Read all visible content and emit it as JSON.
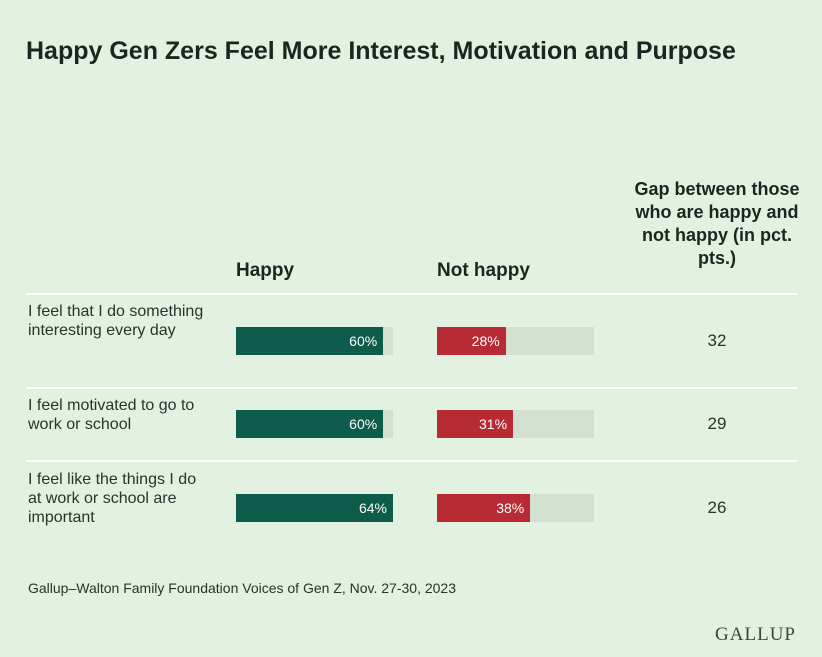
{
  "title": "Happy Gen Zers Feel More Interest, Motivation and Purpose",
  "columns": {
    "happy": "Happy",
    "not_happy": "Not happy",
    "gap": "Gap between those who are happy and not happy (in pct. pts.)"
  },
  "rows": [
    {
      "label": "I feel that I do something interesting every day",
      "happy_label": "60%",
      "not_happy_label": "28%",
      "gap": "32"
    },
    {
      "label": "I feel motivated to go to work or school",
      "happy_label": "60%",
      "not_happy_label": "31%",
      "gap": "29"
    },
    {
      "label": "I feel like the things I do at work or school are important",
      "happy_label": "64%",
      "not_happy_label": "38%",
      "gap": "26"
    }
  ],
  "source": "Gallup–Walton Family Foundation Voices of Gen Z, Nov. 27-30, 2023",
  "logo": "GALLUP",
  "colors": {
    "background": "#e3f1e0",
    "happy": "#0d5c4b",
    "not_happy": "#b82b35",
    "track": "#d3dfd0"
  },
  "chart_data": {
    "type": "bar",
    "orientation": "horizontal",
    "title": "Happy Gen Zers Feel More Interest, Motivation and Purpose",
    "categories": [
      "I feel that I do something interesting every day",
      "I feel motivated to go to work or school",
      "I feel like the things I do at work or school are important"
    ],
    "series": [
      {
        "name": "Happy",
        "values": [
          60,
          60,
          64
        ]
      },
      {
        "name": "Not happy",
        "values": [
          28,
          31,
          38
        ]
      }
    ],
    "gap": [
      32,
      29,
      26
    ],
    "ylim": [
      0,
      64
    ],
    "grid": false,
    "legend": "column headers"
  }
}
